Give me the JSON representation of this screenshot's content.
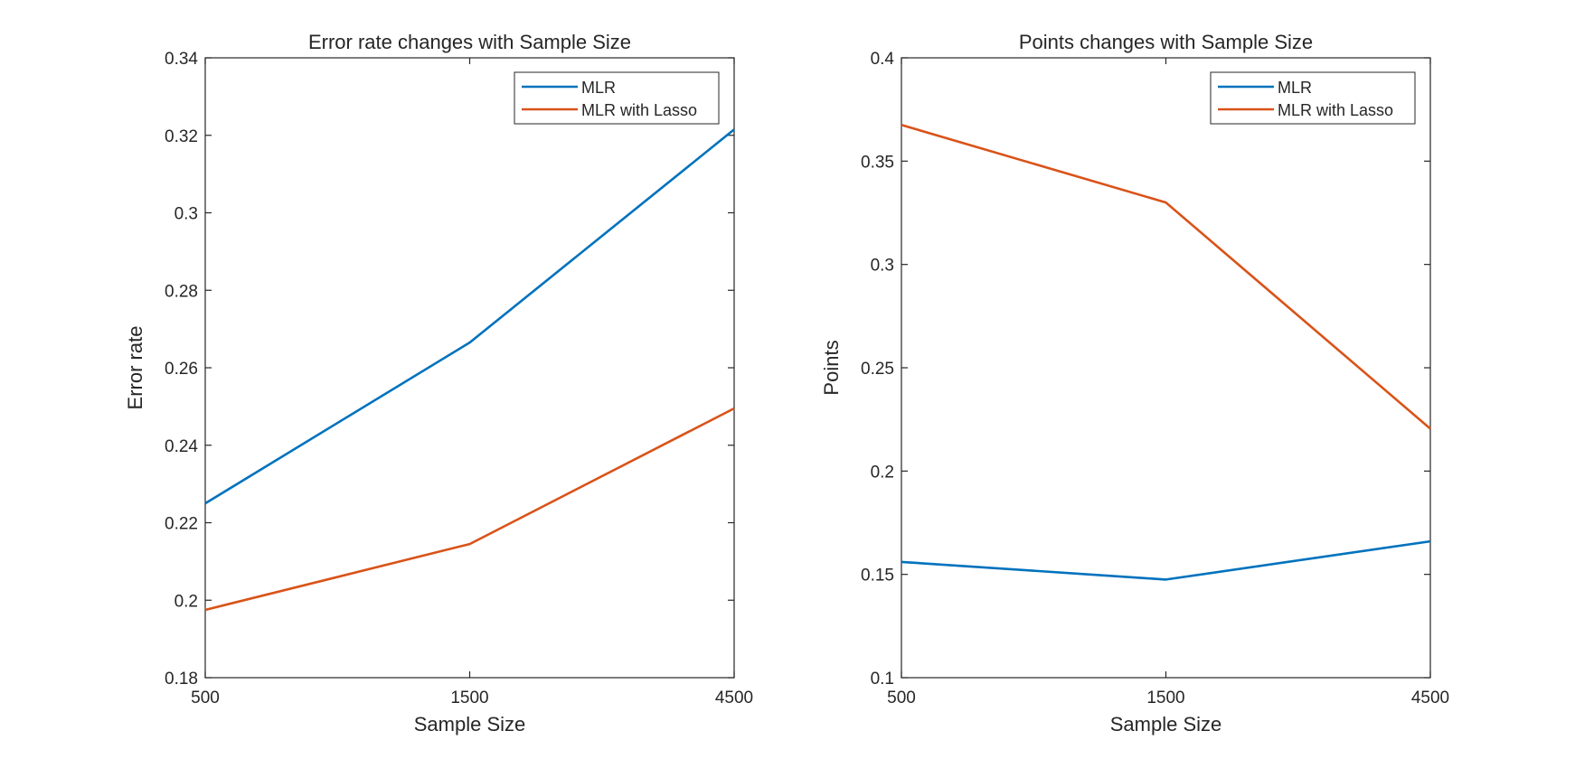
{
  "chart_data": [
    {
      "type": "line",
      "title": "Error rate changes with Sample Size",
      "xlabel": "Sample Size",
      "ylabel": "Error rate",
      "categories": [
        "500",
        "1500",
        "4500"
      ],
      "ylim": [
        0.18,
        0.34
      ],
      "yticks": [
        "0.18",
        "0.2",
        "0.22",
        "0.24",
        "0.26",
        "0.28",
        "0.3",
        "0.32",
        "0.34"
      ],
      "legend_position": "top-right",
      "grid": false,
      "series": [
        {
          "name": "MLR",
          "color": "#0072BD",
          "values": [
            0.225,
            0.2665,
            0.3215
          ]
        },
        {
          "name": "MLR with Lasso",
          "color": "#D95319",
          "values": [
            0.1975,
            0.2145,
            0.2495
          ]
        }
      ]
    },
    {
      "type": "line",
      "title": "Points changes with Sample Size",
      "xlabel": "Sample Size",
      "ylabel": "Points",
      "categories": [
        "500",
        "1500",
        "4500"
      ],
      "ylim": [
        0.1,
        0.4
      ],
      "yticks": [
        "0.1",
        "0.15",
        "0.2",
        "0.25",
        "0.3",
        "0.35",
        "0.4"
      ],
      "legend_position": "top-right",
      "grid": false,
      "series": [
        {
          "name": "MLR",
          "color": "#0072BD",
          "values": [
            0.156,
            0.1475,
            0.166
          ]
        },
        {
          "name": "MLR with Lasso",
          "color": "#D95319",
          "values": [
            0.3675,
            0.33,
            0.2205
          ]
        }
      ]
    }
  ]
}
